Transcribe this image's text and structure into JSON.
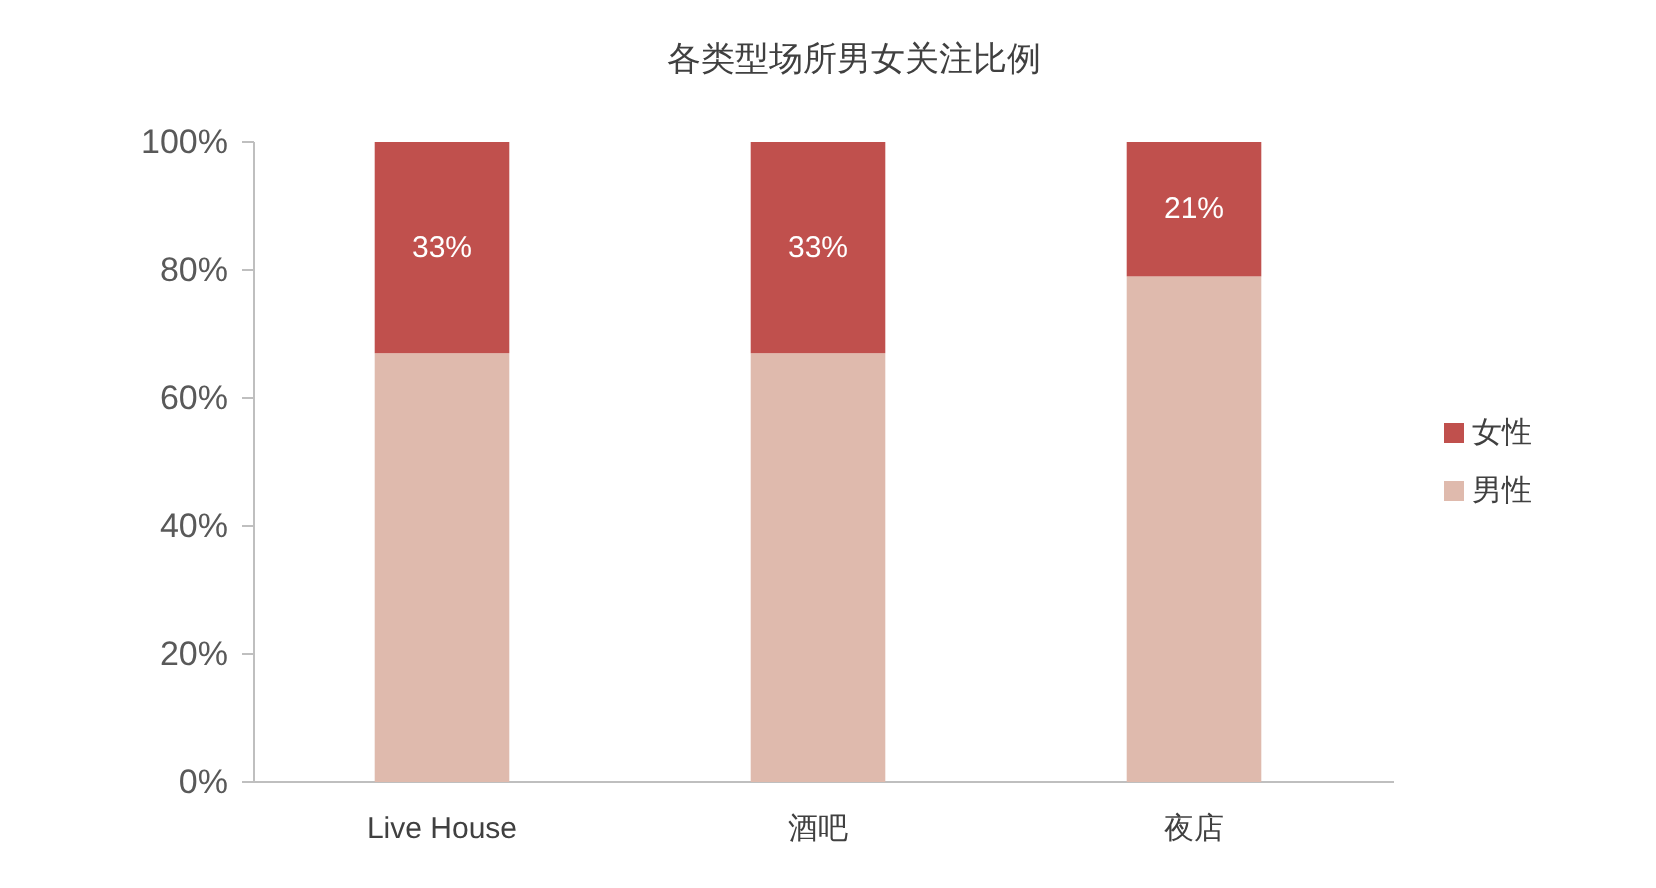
{
  "chart_data": {
    "type": "bar",
    "title": "各类型场所男女关注比例",
    "stacked": true,
    "categories": [
      "Live House",
      "酒吧",
      "夜店"
    ],
    "series": [
      {
        "name": "男性",
        "color": "#dfbaad",
        "values": [
          67,
          67,
          79
        ]
      },
      {
        "name": "女性",
        "color": "#c0504d",
        "values": [
          33,
          33,
          21
        ],
        "value_labels": [
          "33%",
          "33%",
          "21%"
        ]
      }
    ],
    "ylim": [
      0,
      100
    ],
    "yticks": [
      {
        "value": 0,
        "label": "0%"
      },
      {
        "value": 20,
        "label": "20%"
      },
      {
        "value": 40,
        "label": "40%"
      },
      {
        "value": 60,
        "label": "60%"
      },
      {
        "value": 80,
        "label": "80%"
      },
      {
        "value": 100,
        "label": "100%"
      }
    ],
    "legend": "right"
  }
}
